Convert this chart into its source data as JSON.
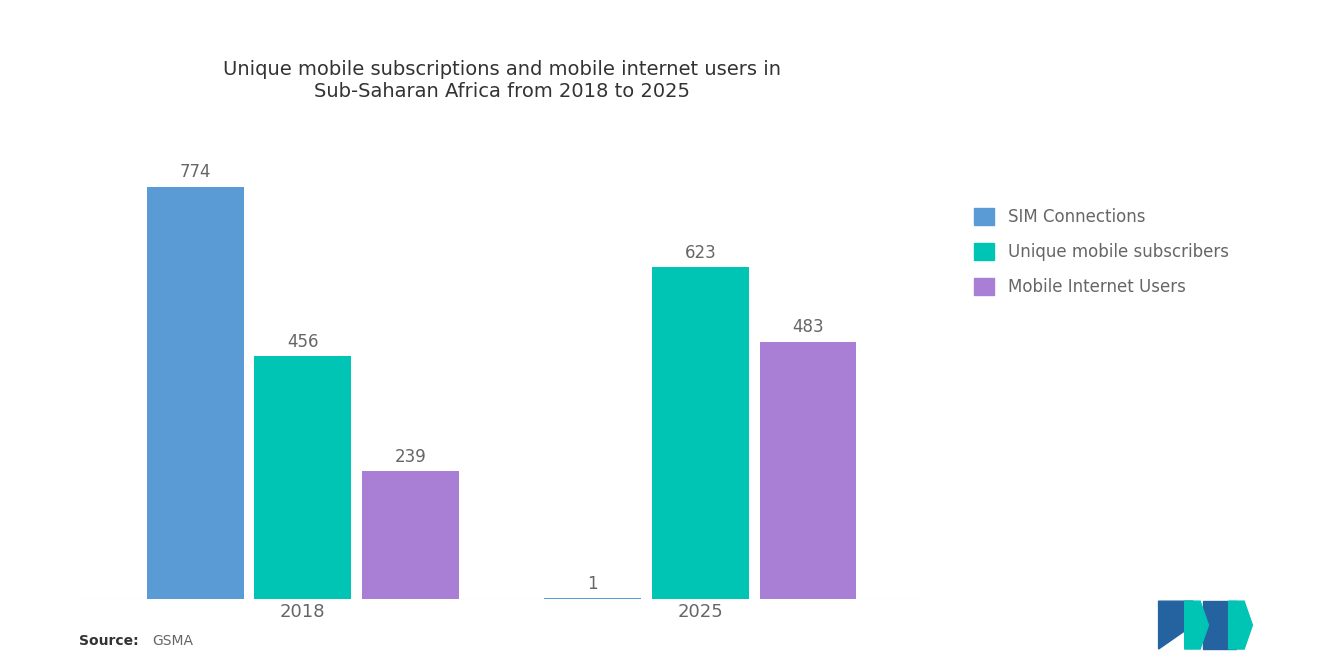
{
  "title": "Unique mobile subscriptions and mobile internet users in\nSub-Saharan Africa from 2018 to 2025",
  "title_fontsize": 14,
  "years": [
    "2018",
    "2025"
  ],
  "categories": [
    "SIM Connections",
    "Unique mobile subscribers",
    "Mobile Internet Users"
  ],
  "values": {
    "2018": [
      774,
      456,
      239
    ],
    "2025": [
      1,
      623,
      483
    ]
  },
  "colors": [
    "#5B9BD5",
    "#00C4B4",
    "#A97FD6"
  ],
  "bar_width": 0.13,
  "source_text": "Source:  GSMA",
  "legend_labels": [
    "SIM Connections",
    "Unique mobile subscribers",
    "Mobile Internet Users"
  ],
  "background_color": "#FFFFFF",
  "label_fontsize": 12,
  "axis_label_fontsize": 13,
  "ylim": [
    0,
    900
  ],
  "group_centers": [
    0.27,
    0.75
  ],
  "logo_colors": [
    "#2563A0",
    "#00C4B4"
  ]
}
